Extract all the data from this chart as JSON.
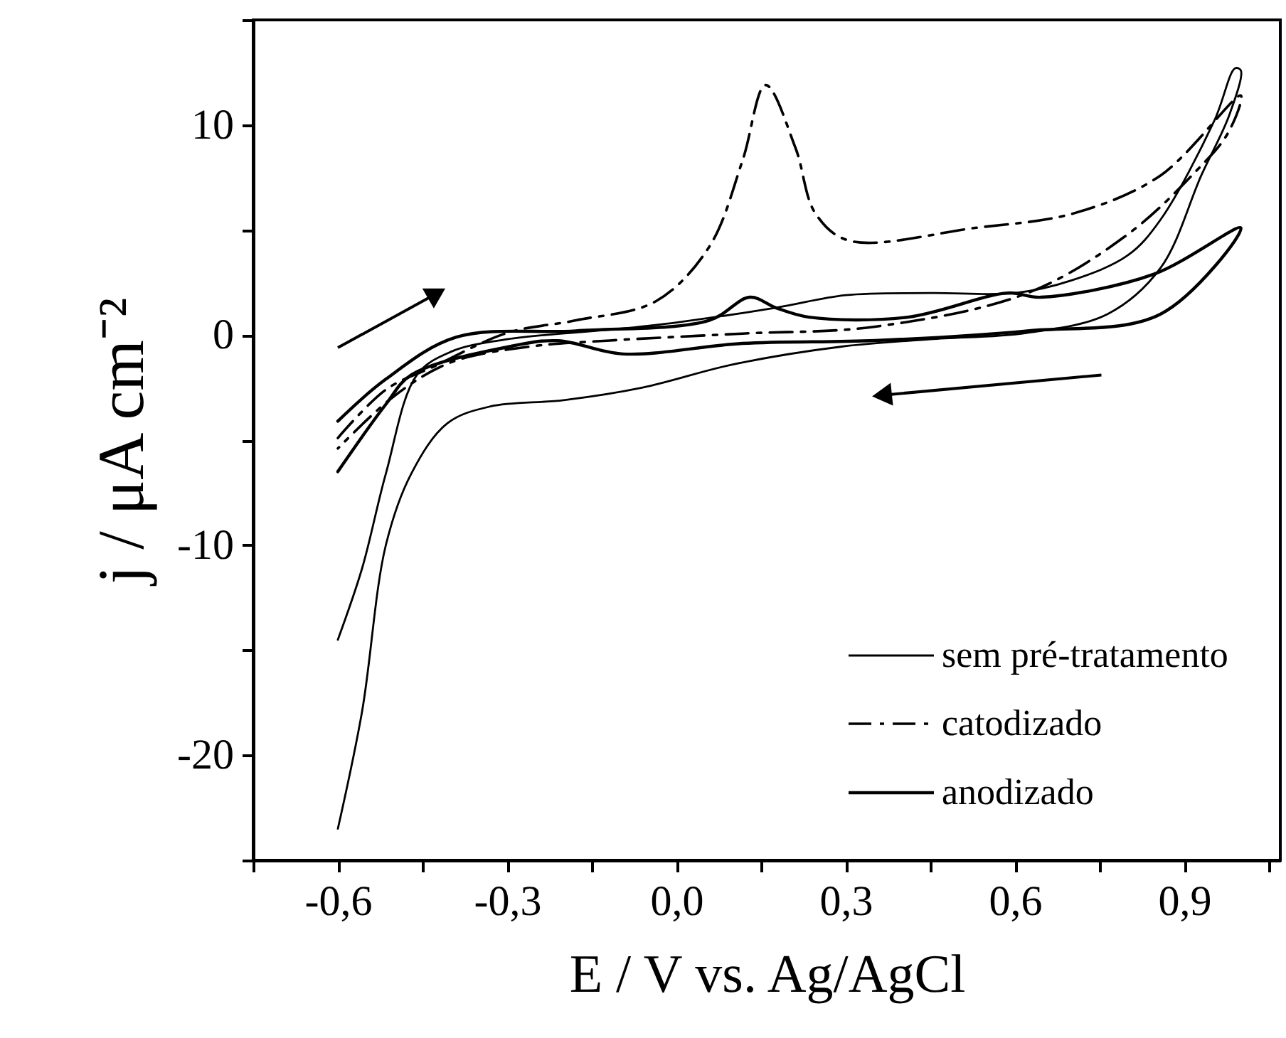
{
  "chart_data": {
    "type": "line",
    "xlabel": "E / V vs. Ag/AgCl",
    "ylabel": "j / μA cm⁻²",
    "xlim": [
      -0.75,
      1.07
    ],
    "ylim": [
      -25,
      15
    ],
    "xticks": [
      {
        "value": -0.75,
        "label": null
      },
      {
        "value": -0.6,
        "label": "-0,6"
      },
      {
        "value": -0.45,
        "label": null
      },
      {
        "value": -0.3,
        "label": "-0,3"
      },
      {
        "value": -0.15,
        "label": null
      },
      {
        "value": 0,
        "label": "0,0"
      },
      {
        "value": 0.15,
        "label": null
      },
      {
        "value": 0.3,
        "label": "0,3"
      },
      {
        "value": 0.45,
        "label": null
      },
      {
        "value": 0.6,
        "label": "0,6"
      },
      {
        "value": 0.75,
        "label": null
      },
      {
        "value": 0.9,
        "label": "0,9"
      },
      {
        "value": 1.05,
        "label": null
      }
    ],
    "yticks": [
      {
        "value": -25,
        "label": null
      },
      -20,
      {
        "value": -15,
        "label": null
      },
      -10,
      {
        "value": -5,
        "label": null
      },
      0,
      {
        "value": 5,
        "label": null
      },
      10,
      {
        "value": 15,
        "label": null
      }
    ],
    "grid": false,
    "legend": "bottom right",
    "series": [
      {
        "name": "sem pré-tratamento",
        "color": "#000000",
        "line_style": "solid",
        "x": [
          -0.6,
          -0.557,
          -0.515,
          -0.46,
          -0.4,
          -0.3,
          -0.1,
          0.0,
          0.176,
          0.3,
          0.45,
          0.6,
          0.7,
          0.8,
          0.858,
          0.953,
          0.99,
          1.0,
          0.98,
          0.93,
          0.858,
          0.764,
          0.62,
          0.45,
          0.293,
          0.1,
          -0.06,
          -0.2,
          -0.33,
          -0.406,
          -0.47,
          -0.515,
          -0.557,
          -0.6
        ],
        "values": [
          -14.5,
          -11.1,
          -6.6,
          -1.9,
          -0.8,
          -0.2,
          0.3,
          0.6,
          1.3,
          1.9,
          2.0,
          2.0,
          2.6,
          3.8,
          5.5,
          10.2,
          12.7,
          12.6,
          10.5,
          7.6,
          3.2,
          1.0,
          0.1,
          -0.2,
          -0.55,
          -1.4,
          -2.5,
          -3.1,
          -3.4,
          -4.2,
          -6.6,
          -10,
          -17.9,
          -23.5
        ]
      },
      {
        "name": "catodizado",
        "color": "#000000",
        "line_style": "dashed",
        "x": [
          -0.6,
          -0.515,
          -0.43,
          -0.3,
          -0.178,
          -0.037,
          0.058,
          0.117,
          0.158,
          0.211,
          0.246,
          0.305,
          0.529,
          0.705,
          0.858,
          1.0,
          0.977,
          0.917,
          0.8,
          0.622,
          0.352,
          0.117,
          -0.118,
          -0.26,
          -0.4,
          -0.5,
          -0.6
        ],
        "values": [
          -4.9,
          -2.6,
          -1.5,
          0.1,
          0.7,
          1.6,
          4.2,
          8.3,
          11.9,
          8.9,
          5.8,
          4.5,
          5.1,
          5.8,
          7.6,
          11.4,
          9.6,
          7.7,
          4.8,
          2.0,
          0.4,
          0.07,
          -0.26,
          -0.55,
          -1.3,
          -2.9,
          -5.4
        ]
      },
      {
        "name": "anodizado",
        "color": "#000000",
        "line_style": "solid",
        "x": [
          -0.6,
          -0.515,
          -0.39,
          -0.178,
          0.058,
          0.13,
          0.176,
          0.235,
          0.41,
          0.587,
          0.646,
          0.846,
          1.0,
          0.858,
          0.622,
          0.352,
          0.117,
          -0.095,
          -0.21,
          -0.296,
          -0.47,
          -0.515,
          -0.6
        ],
        "values": [
          -4.1,
          -2.1,
          -0.1,
          0.2,
          0.7,
          1.8,
          1.3,
          0.85,
          0.85,
          2.0,
          1.8,
          2.9,
          5.1,
          1.0,
          0.2,
          -0.26,
          -0.4,
          -0.9,
          -0.27,
          -0.55,
          -1.9,
          -3.3,
          -6.5
        ]
      }
    ]
  }
}
